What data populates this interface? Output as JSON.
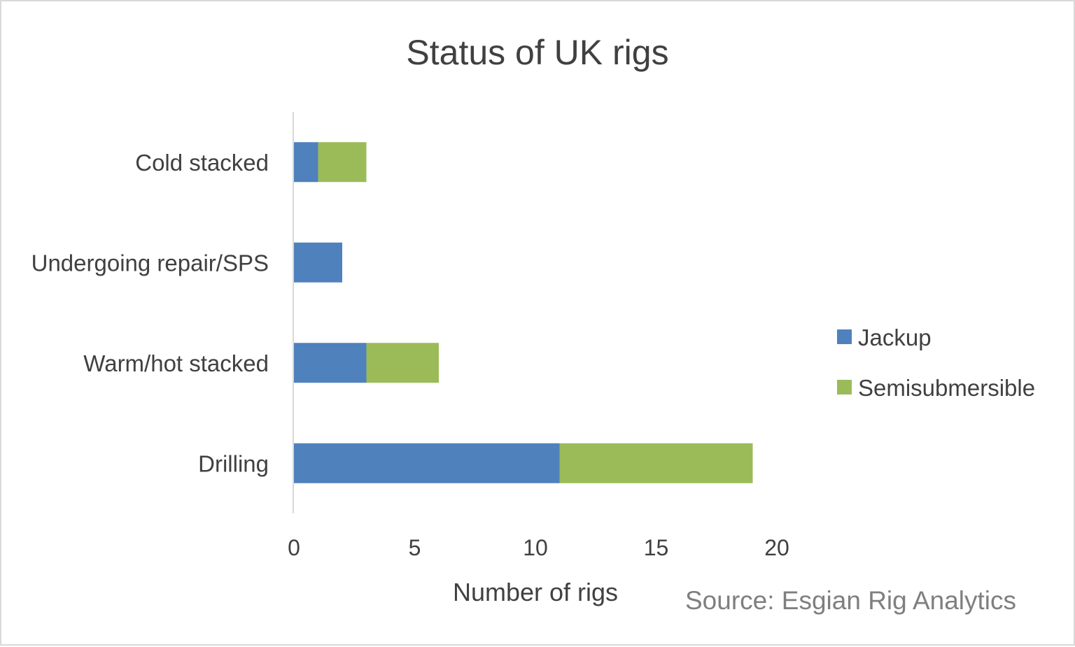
{
  "chart_data": {
    "type": "bar",
    "orientation": "horizontal",
    "stacked": true,
    "title": "Status of UK rigs",
    "xlabel": "Number of rigs",
    "ylabel": "",
    "categories": [
      "Drilling",
      "Warm/hot stacked",
      "Undergoing repair/SPS",
      "Cold stacked"
    ],
    "series": [
      {
        "name": "Jackup",
        "values": [
          11,
          3,
          2,
          1
        ],
        "color": "#4f81bd"
      },
      {
        "name": "Semisubmersible",
        "values": [
          8,
          3,
          0,
          2
        ],
        "color": "#9bbb59"
      }
    ],
    "xlim": [
      0,
      20
    ],
    "xticks": [
      "0",
      "5",
      "10",
      "15",
      "20"
    ],
    "grid": false,
    "legend_position": "right",
    "annotation": "Source: Esgian Rig Analytics"
  }
}
